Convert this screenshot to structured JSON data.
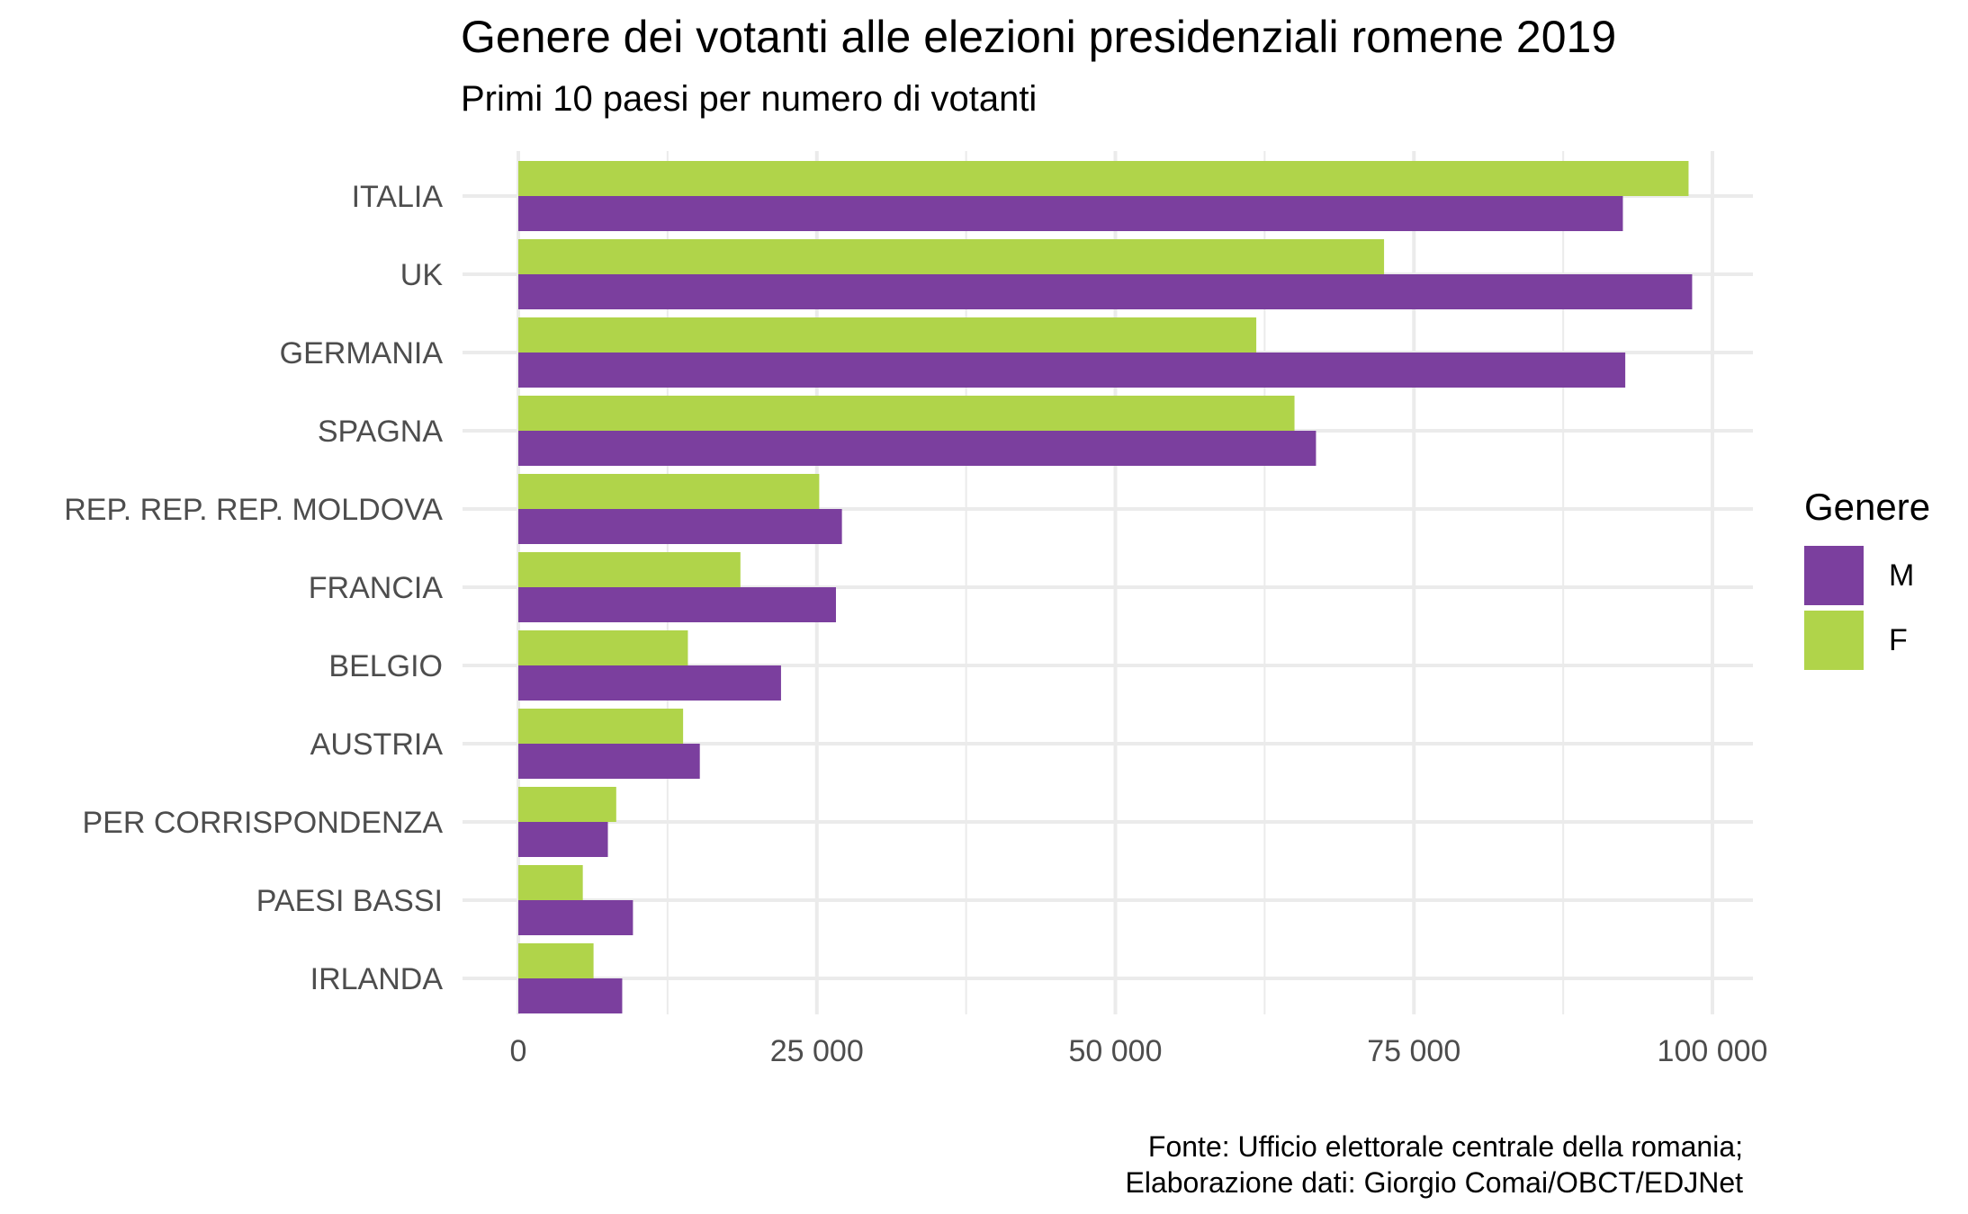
{
  "title": "Genere dei votanti alle elezioni presidenziali romene 2019",
  "subtitle": "Primi 10 paesi per numero di votanti",
  "legend": {
    "title": "Genere",
    "items": [
      {
        "label": "M",
        "color": "#7b3f9e"
      },
      {
        "label": "F",
        "color": "#b0d44a"
      }
    ]
  },
  "caption": {
    "line1": "Fonte: Ufficio elettorale centrale della romania;",
    "line2": "Elaborazione dati: Giorgio Comai/OBCT/EDJNet"
  },
  "colors": {
    "M": "#7b3f9e",
    "F": "#b0d44a",
    "grid": "#ebebeb",
    "axis_text": "#4d4d4d"
  },
  "chart_data": {
    "type": "bar",
    "orientation": "horizontal",
    "categories": [
      "ITALIA",
      "UK",
      "GERMANIA",
      "SPAGNA",
      "REP. REP. REP. MOLDOVA",
      "FRANCIA",
      "BELGIO",
      "AUSTRIA",
      "PER CORRISPONDENZA",
      "PAESI BASSI",
      "IRLANDA"
    ],
    "series": [
      {
        "name": "F",
        "color": "#b0d44a",
        "values": [
          98000,
          72500,
          61800,
          65000,
          25200,
          18600,
          14200,
          13800,
          8200,
          5400,
          6300
        ]
      },
      {
        "name": "M",
        "color": "#7b3f9e",
        "values": [
          92500,
          98300,
          92700,
          66800,
          27100,
          26600,
          22000,
          15200,
          7500,
          9600,
          8700
        ]
      }
    ],
    "xlim": [
      0,
      103000
    ],
    "xticks": [
      0,
      25000,
      50000,
      75000,
      100000
    ],
    "xtick_labels": [
      "0",
      "25 000",
      "50 000",
      "75 000",
      "100 000"
    ],
    "grid": true,
    "legend_position": "right"
  }
}
